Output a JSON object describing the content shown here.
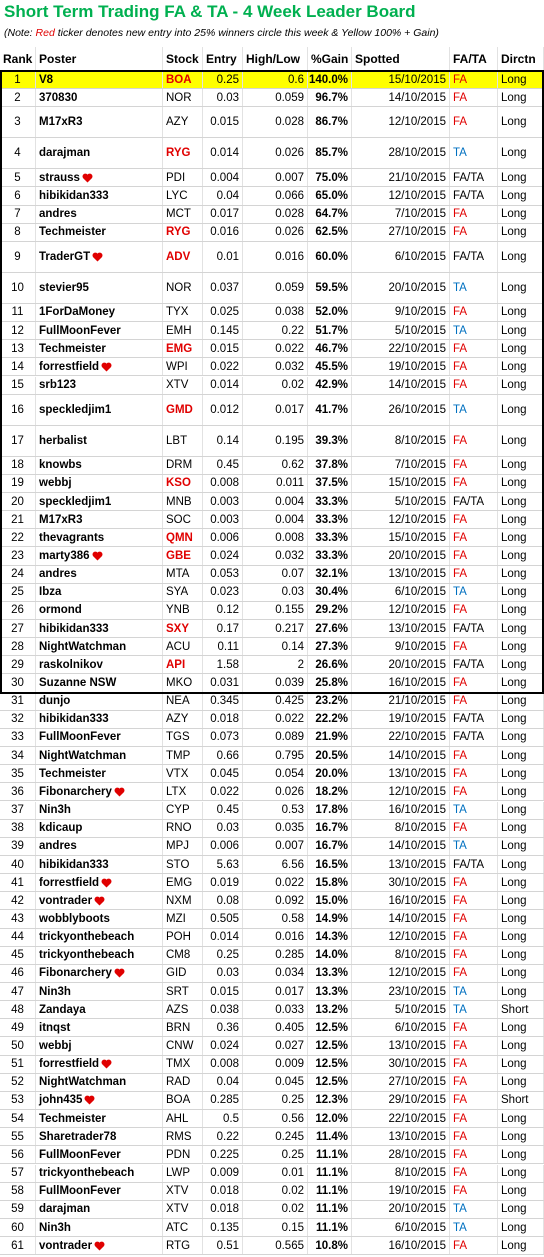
{
  "title": "Short Term Trading FA & TA - 4 Week Leader Board",
  "note": {
    "prefix": "(Note:",
    "red": "Red",
    "rest": "ticker denotes new entry into 25% winners circle this week & Yellow 100% + Gain)"
  },
  "headers": [
    "Rank",
    "Poster",
    "Stock",
    "Entry",
    "High/Low",
    "%Gain",
    "Spotted",
    "FA/TA",
    "Dirctn"
  ],
  "fa_ta_colors": {
    "FA": "#e00000",
    "TA": "#0070c0"
  },
  "rows": [
    {
      "cells": [
        "1",
        "V8",
        "BOA",
        "0.25",
        "0.6",
        "140.0%",
        "15/10/2015",
        "FA",
        "Long"
      ],
      "red_ticker": true,
      "highlight": true
    },
    {
      "cells": [
        "2",
        "370830",
        "NOR",
        "0.03",
        "0.059",
        "96.7%",
        "14/10/2015",
        "FA",
        "Long"
      ]
    },
    {
      "cells": [
        "3",
        "M17xR3",
        "AZY",
        "0.015",
        "0.028",
        "86.7%",
        "12/10/2015",
        "FA",
        "Long"
      ]
    },
    {
      "cells": [
        "4",
        "darajman",
        "RYG",
        "0.014",
        "0.026",
        "85.7%",
        "28/10/2015",
        "TA",
        "Long"
      ],
      "red_ticker": true
    },
    {
      "cells": [
        "5",
        "strauss",
        "PDI",
        "0.004",
        "0.007",
        "75.0%",
        "21/10/2015",
        "FA/TA",
        "Long"
      ],
      "heart": true
    },
    {
      "cells": [
        "6",
        "hibikidan333",
        "LYC",
        "0.04",
        "0.066",
        "65.0%",
        "12/10/2015",
        "FA/TA",
        "Long"
      ]
    },
    {
      "cells": [
        "7",
        "andres",
        "MCT",
        "0.017",
        "0.028",
        "64.7%",
        "7/10/2015",
        "FA",
        "Long"
      ]
    },
    {
      "cells": [
        "8",
        "Techmeister",
        "RYG",
        "0.016",
        "0.026",
        "62.5%",
        "27/10/2015",
        "FA",
        "Long"
      ],
      "red_ticker": true
    },
    {
      "cells": [
        "9",
        "TraderGT",
        "ADV",
        "0.01",
        "0.016",
        "60.0%",
        "6/10/2015",
        "FA/TA",
        "Long"
      ],
      "heart": true,
      "red_ticker": true
    },
    {
      "cells": [
        "10",
        "stevier95",
        "NOR",
        "0.037",
        "0.059",
        "59.5%",
        "20/10/2015",
        "TA",
        "Long"
      ]
    },
    {
      "cells": [
        "11",
        "1ForDaMoney",
        "TYX",
        "0.025",
        "0.038",
        "52.0%",
        "9/10/2015",
        "FA",
        "Long"
      ]
    },
    {
      "cells": [
        "12",
        "FullMoonFever",
        "EMH",
        "0.145",
        "0.22",
        "51.7%",
        "5/10/2015",
        "TA",
        "Long"
      ]
    },
    {
      "cells": [
        "13",
        "Techmeister",
        "EMG",
        "0.015",
        "0.022",
        "46.7%",
        "22/10/2015",
        "FA",
        "Long"
      ],
      "red_ticker": true
    },
    {
      "cells": [
        "14",
        "forrestfield",
        "WPI",
        "0.022",
        "0.032",
        "45.5%",
        "19/10/2015",
        "FA",
        "Long"
      ],
      "heart": true
    },
    {
      "cells": [
        "15",
        "srb123",
        "XTV",
        "0.014",
        "0.02",
        "42.9%",
        "14/10/2015",
        "FA",
        "Long"
      ]
    },
    {
      "cells": [
        "16",
        "speckledjim1",
        "GMD",
        "0.012",
        "0.017",
        "41.7%",
        "26/10/2015",
        "TA",
        "Long"
      ],
      "red_ticker": true
    },
    {
      "cells": [
        "17",
        "herbalist",
        "LBT",
        "0.14",
        "0.195",
        "39.3%",
        "8/10/2015",
        "FA",
        "Long"
      ]
    },
    {
      "cells": [
        "18",
        "knowbs",
        "DRM",
        "0.45",
        "0.62",
        "37.8%",
        "7/10/2015",
        "FA",
        "Long"
      ]
    },
    {
      "cells": [
        "19",
        "webbj",
        "KSO",
        "0.008",
        "0.011",
        "37.5%",
        "15/10/2015",
        "FA",
        "Long"
      ],
      "red_ticker": true
    },
    {
      "cells": [
        "20",
        "speckledjim1",
        "MNB",
        "0.003",
        "0.004",
        "33.3%",
        "5/10/2015",
        "FA/TA",
        "Long"
      ]
    },
    {
      "cells": [
        "21",
        "M17xR3",
        "SOC",
        "0.003",
        "0.004",
        "33.3%",
        "12/10/2015",
        "FA",
        "Long"
      ]
    },
    {
      "cells": [
        "22",
        "thevagrants",
        "QMN",
        "0.006",
        "0.008",
        "33.3%",
        "15/10/2015",
        "FA",
        "Long"
      ],
      "red_ticker": true
    },
    {
      "cells": [
        "23",
        "marty386",
        "GBE",
        "0.024",
        "0.032",
        "33.3%",
        "20/10/2015",
        "FA",
        "Long"
      ],
      "heart": true,
      "red_ticker": true
    },
    {
      "cells": [
        "24",
        "andres",
        "MTA",
        "0.053",
        "0.07",
        "32.1%",
        "13/10/2015",
        "FA",
        "Long"
      ]
    },
    {
      "cells": [
        "25",
        "Ibza",
        "SYA",
        "0.023",
        "0.03",
        "30.4%",
        "6/10/2015",
        "TA",
        "Long"
      ]
    },
    {
      "cells": [
        "26",
        "ormond",
        "YNB",
        "0.12",
        "0.155",
        "29.2%",
        "12/10/2015",
        "FA",
        "Long"
      ]
    },
    {
      "cells": [
        "27",
        "hibikidan333",
        "SXY",
        "0.17",
        "0.217",
        "27.6%",
        "13/10/2015",
        "FA/TA",
        "Long"
      ],
      "red_ticker": true
    },
    {
      "cells": [
        "28",
        "NightWatchman",
        "ACU",
        "0.11",
        "0.14",
        "27.3%",
        "9/10/2015",
        "FA",
        "Long"
      ]
    },
    {
      "cells": [
        "29",
        "raskolnikov",
        "API",
        "1.58",
        "2",
        "26.6%",
        "20/10/2015",
        "FA/TA",
        "Long"
      ],
      "red_ticker": true
    },
    {
      "cells": [
        "30",
        "Suzanne NSW",
        "MKO",
        "0.031",
        "0.039",
        "25.8%",
        "16/10/2015",
        "FA",
        "Long"
      ]
    },
    {
      "cells": [
        "31",
        "dunjo",
        "NEA",
        "0.345",
        "0.425",
        "23.2%",
        "21/10/2015",
        "FA",
        "Long"
      ]
    },
    {
      "cells": [
        "32",
        "hibikidan333",
        "AZY",
        "0.018",
        "0.022",
        "22.2%",
        "19/10/2015",
        "FA/TA",
        "Long"
      ]
    },
    {
      "cells": [
        "33",
        "FullMoonFever",
        "TGS",
        "0.073",
        "0.089",
        "21.9%",
        "22/10/2015",
        "FA/TA",
        "Long"
      ]
    },
    {
      "cells": [
        "34",
        "NightWatchman",
        "TMP",
        "0.66",
        "0.795",
        "20.5%",
        "14/10/2015",
        "FA",
        "Long"
      ]
    },
    {
      "cells": [
        "35",
        "Techmeister",
        "VTX",
        "0.045",
        "0.054",
        "20.0%",
        "13/10/2015",
        "FA",
        "Long"
      ]
    },
    {
      "cells": [
        "36",
        "Fibonarchery",
        "LTX",
        "0.022",
        "0.026",
        "18.2%",
        "12/10/2015",
        "FA",
        "Long"
      ],
      "heart": true
    },
    {
      "cells": [
        "37",
        "Nin3h",
        "CYP",
        "0.45",
        "0.53",
        "17.8%",
        "16/10/2015",
        "TA",
        "Long"
      ]
    },
    {
      "cells": [
        "38",
        "kdicaup",
        "RNO",
        "0.03",
        "0.035",
        "16.7%",
        "8/10/2015",
        "FA",
        "Long"
      ]
    },
    {
      "cells": [
        "39",
        "andres",
        "MPJ",
        "0.006",
        "0.007",
        "16.7%",
        "14/10/2015",
        "TA",
        "Long"
      ]
    },
    {
      "cells": [
        "40",
        "hibikidan333",
        "STO",
        "5.63",
        "6.56",
        "16.5%",
        "13/10/2015",
        "FA/TA",
        "Long"
      ]
    },
    {
      "cells": [
        "41",
        "forrestfield",
        "EMG",
        "0.019",
        "0.022",
        "15.8%",
        "30/10/2015",
        "FA",
        "Long"
      ],
      "heart": true
    },
    {
      "cells": [
        "42",
        "vontrader",
        "NXM",
        "0.08",
        "0.092",
        "15.0%",
        "16/10/2015",
        "FA",
        "Long"
      ],
      "heart": true
    },
    {
      "cells": [
        "43",
        "wobblyboots",
        "MZI",
        "0.505",
        "0.58",
        "14.9%",
        "14/10/2015",
        "FA",
        "Long"
      ]
    },
    {
      "cells": [
        "44",
        "trickyonthebeach",
        "POH",
        "0.014",
        "0.016",
        "14.3%",
        "12/10/2015",
        "FA",
        "Long"
      ]
    },
    {
      "cells": [
        "45",
        "trickyonthebeach",
        "CM8",
        "0.25",
        "0.285",
        "14.0%",
        "8/10/2015",
        "FA",
        "Long"
      ]
    },
    {
      "cells": [
        "46",
        "Fibonarchery",
        "GID",
        "0.03",
        "0.034",
        "13.3%",
        "12/10/2015",
        "FA",
        "Long"
      ],
      "heart": true
    },
    {
      "cells": [
        "47",
        "Nin3h",
        "SRT",
        "0.015",
        "0.017",
        "13.3%",
        "23/10/2015",
        "TA",
        "Long"
      ]
    },
    {
      "cells": [
        "48",
        "Zandaya",
        "AZS",
        "0.038",
        "0.033",
        "13.2%",
        "5/10/2015",
        "TA",
        "Short"
      ]
    },
    {
      "cells": [
        "49",
        "itnqst",
        "BRN",
        "0.36",
        "0.405",
        "12.5%",
        "6/10/2015",
        "FA",
        "Long"
      ]
    },
    {
      "cells": [
        "50",
        "webbj",
        "CNW",
        "0.024",
        "0.027",
        "12.5%",
        "13/10/2015",
        "FA",
        "Long"
      ]
    },
    {
      "cells": [
        "51",
        "forrestfield",
        "TMX",
        "0.008",
        "0.009",
        "12.5%",
        "30/10/2015",
        "FA",
        "Long"
      ],
      "heart": true
    },
    {
      "cells": [
        "52",
        "NightWatchman",
        "RAD",
        "0.04",
        "0.045",
        "12.5%",
        "27/10/2015",
        "FA",
        "Long"
      ]
    },
    {
      "cells": [
        "53",
        "john435",
        "BOA",
        "0.285",
        "0.25",
        "12.3%",
        "29/10/2015",
        "FA",
        "Short"
      ],
      "heart": true
    },
    {
      "cells": [
        "54",
        "Techmeister",
        "AHL",
        "0.5",
        "0.56",
        "12.0%",
        "22/10/2015",
        "FA",
        "Long"
      ]
    },
    {
      "cells": [
        "55",
        "Sharetrader78",
        "RMS",
        "0.22",
        "0.245",
        "11.4%",
        "13/10/2015",
        "FA",
        "Long"
      ]
    },
    {
      "cells": [
        "56",
        "FullMoonFever",
        "PDN",
        "0.225",
        "0.25",
        "11.1%",
        "28/10/2015",
        "FA",
        "Long"
      ]
    },
    {
      "cells": [
        "57",
        "trickyonthebeach",
        "LWP",
        "0.009",
        "0.01",
        "11.1%",
        "8/10/2015",
        "FA",
        "Long"
      ]
    },
    {
      "cells": [
        "58",
        "FullMoonFever",
        "XTV",
        "0.018",
        "0.02",
        "11.1%",
        "19/10/2015",
        "FA",
        "Long"
      ]
    },
    {
      "cells": [
        "59",
        "darajman",
        "XTV",
        "0.018",
        "0.02",
        "11.1%",
        "20/10/2015",
        "TA",
        "Long"
      ]
    },
    {
      "cells": [
        "60",
        "Nin3h",
        "ATC",
        "0.135",
        "0.15",
        "11.1%",
        "6/10/2015",
        "TA",
        "Long"
      ]
    },
    {
      "cells": [
        "61",
        "vontrader",
        "RTG",
        "0.51",
        "0.565",
        "10.8%",
        "16/10/2015",
        "FA",
        "Long"
      ],
      "heart": true
    }
  ]
}
